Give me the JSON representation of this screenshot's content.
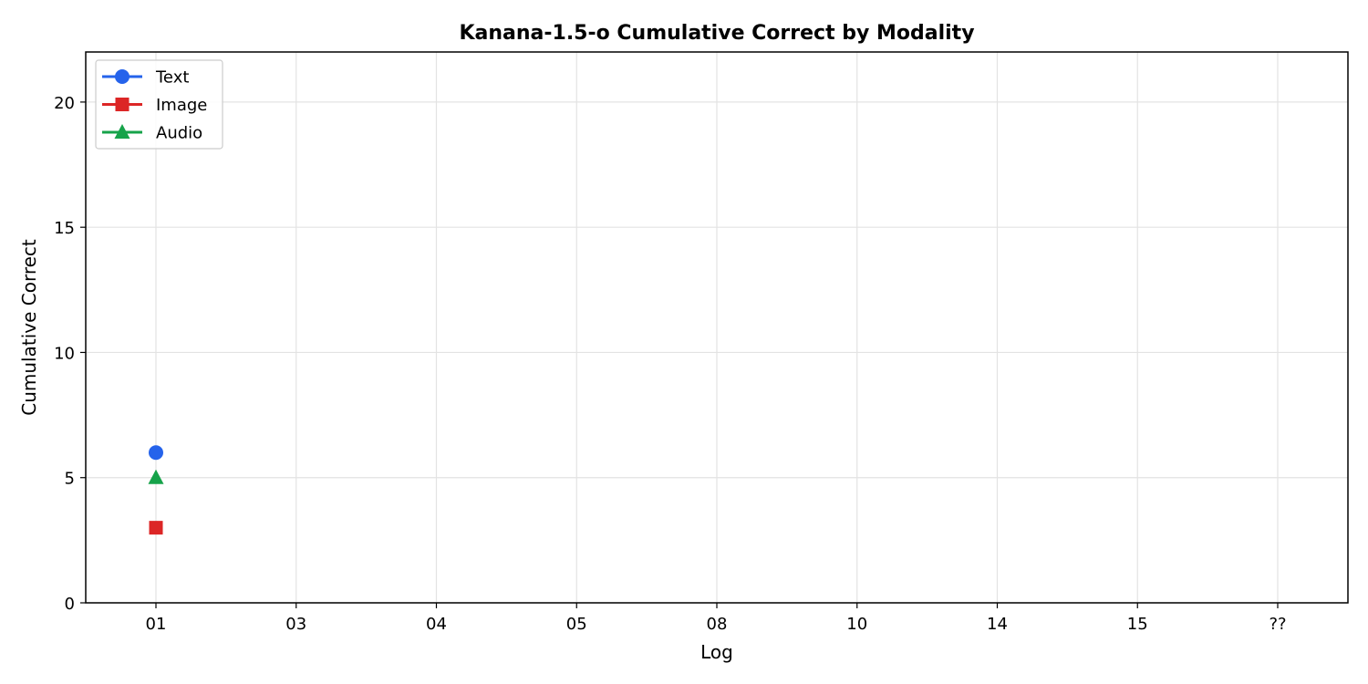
{
  "chart_data": {
    "type": "line",
    "title": "Kanana-1.5-o  Cumulative Correct by Modality",
    "xlabel": "Log",
    "ylabel": "Cumulative Correct",
    "categories": [
      "01",
      "03",
      "04",
      "05",
      "08",
      "10",
      "14",
      "15",
      "??"
    ],
    "ylim": [
      0,
      22
    ],
    "yticks": [
      0,
      5,
      10,
      15,
      20
    ],
    "grid": true,
    "legend_position": "top-left",
    "series": [
      {
        "name": "Text",
        "color": "#2563eb",
        "marker": "circle",
        "values": [
          6,
          null,
          null,
          null,
          null,
          null,
          null,
          null,
          null
        ]
      },
      {
        "name": "Image",
        "color": "#dc2626",
        "marker": "square",
        "values": [
          3,
          null,
          null,
          null,
          null,
          null,
          null,
          null,
          null
        ]
      },
      {
        "name": "Audio",
        "color": "#16a34a",
        "marker": "triangle",
        "values": [
          5,
          null,
          null,
          null,
          null,
          null,
          null,
          null,
          null
        ]
      }
    ]
  }
}
